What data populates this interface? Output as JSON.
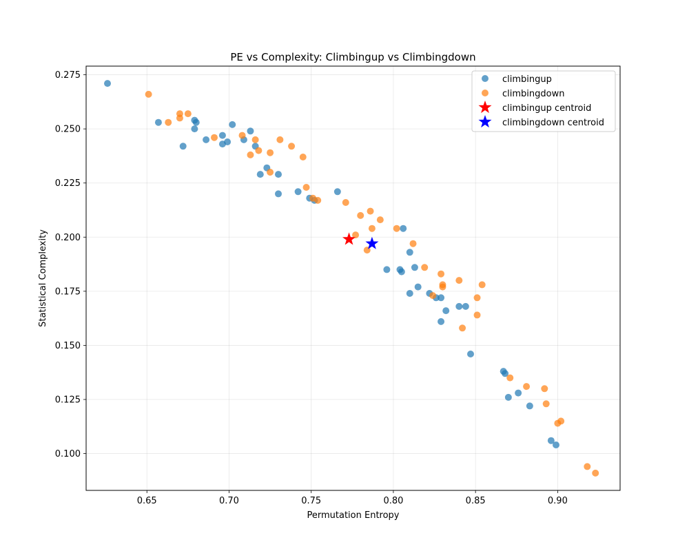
{
  "chart_data": {
    "type": "scatter",
    "title": "PE vs Complexity: Climbingup vs Climbingdown",
    "xlabel": "Permutation Entropy",
    "ylabel": "Statistical Complexity",
    "xlim": [
      0.613,
      0.938
    ],
    "ylim": [
      0.083,
      0.279
    ],
    "xticks": [
      0.65,
      0.7,
      0.75,
      0.8,
      0.85,
      0.9
    ],
    "xtick_labels": [
      "0.65",
      "0.70",
      "0.75",
      "0.80",
      "0.85",
      "0.90"
    ],
    "yticks": [
      0.1,
      0.125,
      0.15,
      0.175,
      0.2,
      0.225,
      0.25,
      0.275
    ],
    "ytick_labels": [
      "0.100",
      "0.125",
      "0.150",
      "0.175",
      "0.200",
      "0.225",
      "0.250",
      "0.275"
    ],
    "grid": true,
    "legend_position": "top-right",
    "series": [
      {
        "name": "climbingup",
        "color": "#1f77b4",
        "marker": "circle",
        "points": [
          [
            0.626,
            0.271
          ],
          [
            0.657,
            0.253
          ],
          [
            0.672,
            0.242
          ],
          [
            0.679,
            0.254
          ],
          [
            0.68,
            0.253
          ],
          [
            0.679,
            0.25
          ],
          [
            0.686,
            0.245
          ],
          [
            0.696,
            0.247
          ],
          [
            0.696,
            0.243
          ],
          [
            0.699,
            0.244
          ],
          [
            0.702,
            0.252
          ],
          [
            0.709,
            0.245
          ],
          [
            0.713,
            0.249
          ],
          [
            0.716,
            0.242
          ],
          [
            0.719,
            0.229
          ],
          [
            0.723,
            0.232
          ],
          [
            0.73,
            0.229
          ],
          [
            0.73,
            0.22
          ],
          [
            0.742,
            0.221
          ],
          [
            0.749,
            0.218
          ],
          [
            0.752,
            0.217
          ],
          [
            0.766,
            0.221
          ],
          [
            0.796,
            0.185
          ],
          [
            0.804,
            0.185
          ],
          [
            0.805,
            0.184
          ],
          [
            0.806,
            0.204
          ],
          [
            0.81,
            0.193
          ],
          [
            0.81,
            0.174
          ],
          [
            0.813,
            0.186
          ],
          [
            0.815,
            0.177
          ],
          [
            0.822,
            0.174
          ],
          [
            0.826,
            0.172
          ],
          [
            0.829,
            0.172
          ],
          [
            0.829,
            0.161
          ],
          [
            0.832,
            0.166
          ],
          [
            0.84,
            0.168
          ],
          [
            0.844,
            0.168
          ],
          [
            0.847,
            0.146
          ],
          [
            0.867,
            0.138
          ],
          [
            0.868,
            0.137
          ],
          [
            0.87,
            0.126
          ],
          [
            0.876,
            0.128
          ],
          [
            0.883,
            0.122
          ],
          [
            0.896,
            0.106
          ],
          [
            0.899,
            0.104
          ]
        ]
      },
      {
        "name": "climbingdown",
        "color": "#ff7f0e",
        "marker": "circle",
        "points": [
          [
            0.651,
            0.266
          ],
          [
            0.663,
            0.253
          ],
          [
            0.67,
            0.257
          ],
          [
            0.67,
            0.255
          ],
          [
            0.675,
            0.257
          ],
          [
            0.691,
            0.246
          ],
          [
            0.708,
            0.247
          ],
          [
            0.713,
            0.238
          ],
          [
            0.716,
            0.245
          ],
          [
            0.718,
            0.24
          ],
          [
            0.725,
            0.239
          ],
          [
            0.725,
            0.23
          ],
          [
            0.731,
            0.245
          ],
          [
            0.738,
            0.242
          ],
          [
            0.745,
            0.237
          ],
          [
            0.747,
            0.223
          ],
          [
            0.751,
            0.218
          ],
          [
            0.754,
            0.217
          ],
          [
            0.771,
            0.216
          ],
          [
            0.777,
            0.201
          ],
          [
            0.78,
            0.21
          ],
          [
            0.784,
            0.194
          ],
          [
            0.786,
            0.212
          ],
          [
            0.787,
            0.204
          ],
          [
            0.792,
            0.208
          ],
          [
            0.802,
            0.204
          ],
          [
            0.812,
            0.197
          ],
          [
            0.819,
            0.186
          ],
          [
            0.824,
            0.173
          ],
          [
            0.829,
            0.183
          ],
          [
            0.83,
            0.178
          ],
          [
            0.83,
            0.177
          ],
          [
            0.84,
            0.18
          ],
          [
            0.842,
            0.158
          ],
          [
            0.851,
            0.172
          ],
          [
            0.851,
            0.164
          ],
          [
            0.854,
            0.178
          ],
          [
            0.871,
            0.135
          ],
          [
            0.881,
            0.131
          ],
          [
            0.892,
            0.13
          ],
          [
            0.893,
            0.123
          ],
          [
            0.9,
            0.114
          ],
          [
            0.902,
            0.115
          ],
          [
            0.918,
            0.094
          ],
          [
            0.923,
            0.091
          ]
        ]
      },
      {
        "name": "climbingup centroid",
        "color": "#ff0000",
        "marker": "star",
        "points": [
          [
            0.773,
            0.199
          ]
        ]
      },
      {
        "name": "climbingdown centroid",
        "color": "#0000ff",
        "marker": "star",
        "points": [
          [
            0.787,
            0.197
          ]
        ]
      }
    ]
  }
}
